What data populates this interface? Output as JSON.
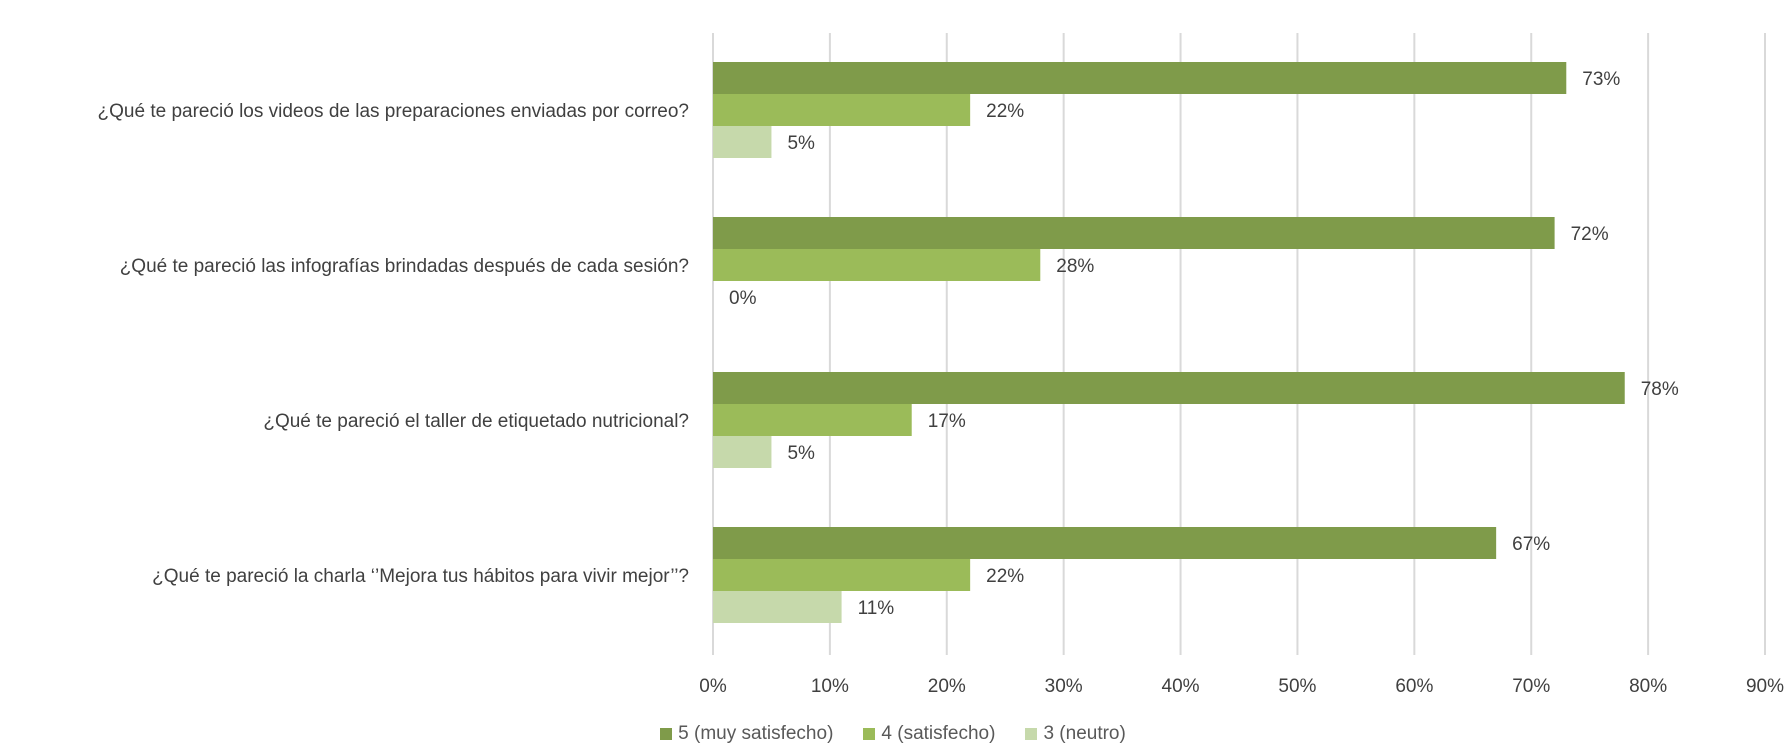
{
  "chart_data": {
    "type": "bar",
    "orientation": "horizontal",
    "categories": [
      "¿Qué te pareció los videos de las preparaciones enviadas por correo?",
      "¿Qué te pareció las infografías brindadas después de cada sesión?",
      "¿Qué te pareció el taller de etiquetado nutricional?",
      "¿Qué te pareció la charla ‘’Mejora tus hábitos para vivir mejor’’?"
    ],
    "series": [
      {
        "name": "5 (muy satisfecho)",
        "color": "#7F9B4A",
        "values": [
          73,
          72,
          78,
          67
        ],
        "labels": [
          "73%",
          "72%",
          "78%",
          "67%"
        ]
      },
      {
        "name": "4 (satisfecho)",
        "color": "#9BBB59",
        "values": [
          22,
          28,
          17,
          22
        ],
        "labels": [
          "22%",
          "28%",
          "17%",
          "22%"
        ]
      },
      {
        "name": "3 (neutro)",
        "color": "#C6D9AB",
        "values": [
          5,
          0,
          5,
          11
        ],
        "labels": [
          "5%",
          "0%",
          "5%",
          "11%"
        ]
      }
    ],
    "xlim": [
      0,
      90
    ],
    "xticks": [
      "0%",
      "10%",
      "20%",
      "30%",
      "40%",
      "50%",
      "60%",
      "70%",
      "80%",
      "90%"
    ],
    "grid": true,
    "legend_position": "bottom"
  }
}
